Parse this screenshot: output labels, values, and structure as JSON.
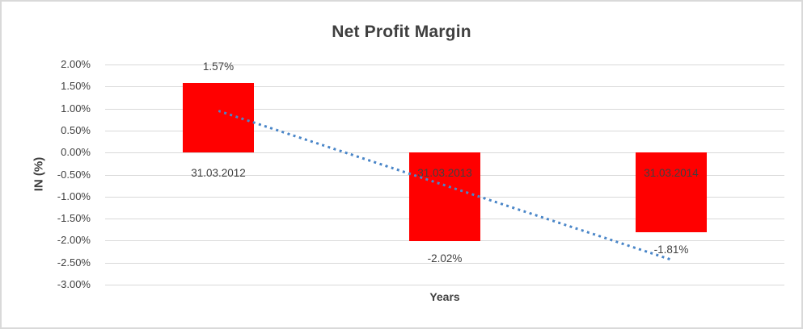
{
  "chart": {
    "bar_color": "#ff0000",
    "trendline_color": "#4a86c8",
    "gridline_color": "#d9d9d9",
    "text_color": "#404040",
    "title_color": "#3f3f3f",
    "frame_border_color": "#d9d9d9"
  },
  "chart_data": {
    "type": "bar",
    "title": "Net Profit Margin",
    "xlabel": "Years",
    "ylabel": "IN (%)",
    "categories": [
      "31.03.2012",
      "31.03.2013",
      "31.03.2014"
    ],
    "values": [
      1.57,
      -2.02,
      -1.81
    ],
    "value_labels": [
      "1.57%",
      "-2.02%",
      "-1.81%"
    ],
    "ylim": [
      -3.0,
      2.0
    ],
    "y_tick_step": 0.5,
    "y_tick_labels": [
      "2.00%",
      "1.50%",
      "1.00%",
      "0.50%",
      "0.00%",
      "-0.50%",
      "-1.00%",
      "-1.50%",
      "-2.00%",
      "-2.50%",
      "-3.00%"
    ],
    "grid": true,
    "legend": "none",
    "trendline": {
      "type": "linear",
      "style": "dotted",
      "start_value": 0.94,
      "end_value": -2.44
    }
  }
}
